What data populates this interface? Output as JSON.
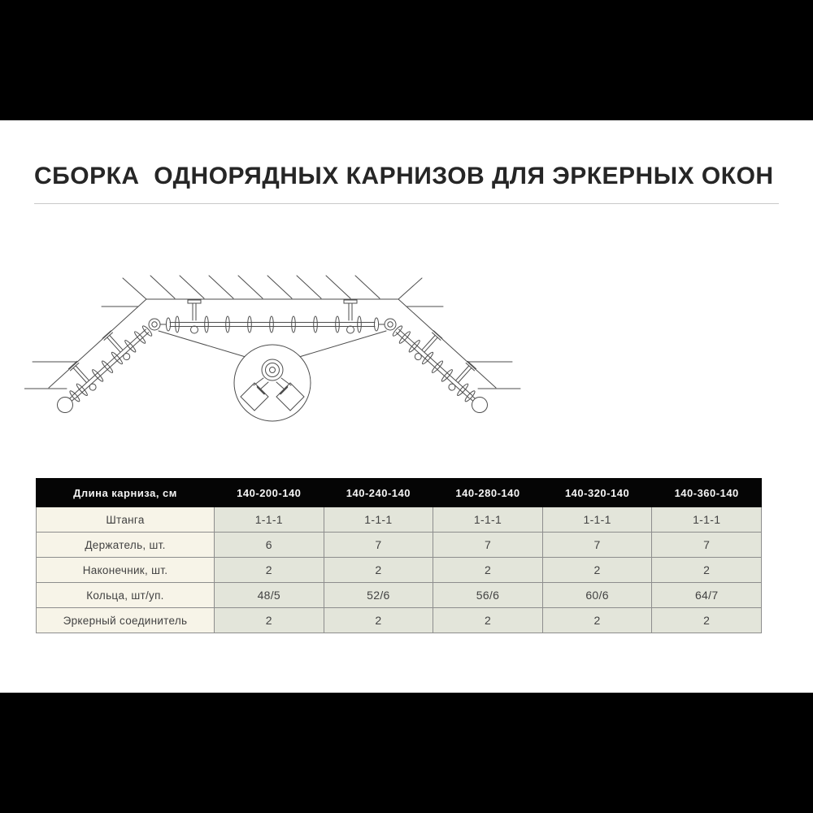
{
  "page": {
    "title": "СБОРКА  ОДНОРЯДНЫХ КАРНИЗОВ ДЛЯ ЭРКЕРНЫХ ОКОН"
  },
  "table": {
    "columns": [
      "Длина карниза, см",
      "140-200-140",
      "140-240-140",
      "140-280-140",
      "140-320-140",
      "140-360-140"
    ],
    "rows": [
      {
        "label": "Штанга",
        "values": [
          "1-1-1",
          "1-1-1",
          "1-1-1",
          "1-1-1",
          "1-1-1"
        ]
      },
      {
        "label": "Держатель, шт.",
        "values": [
          "6",
          "7",
          "7",
          "7",
          "7"
        ]
      },
      {
        "label": "Наконечник, шт.",
        "values": [
          "2",
          "2",
          "2",
          "2",
          "2"
        ]
      },
      {
        "label": "Кольца, шт/уп.",
        "values": [
          "48/5",
          "52/6",
          "56/6",
          "60/6",
          "64/7"
        ]
      },
      {
        "label": "Эркерный соединитель",
        "values": [
          "2",
          "2",
          "2",
          "2",
          "2"
        ]
      }
    ]
  },
  "colors": {
    "letterbox_bar": "#000000",
    "table_header_bg": "#050505",
    "table_header_text": "#f5f5f5",
    "table_label_col_bg": "#f7f4e8",
    "table_cell_bg": "#e3e5da",
    "table_border": "#8d8d8d",
    "title_text": "#262626",
    "drawing_line": "#4d4d4d"
  }
}
